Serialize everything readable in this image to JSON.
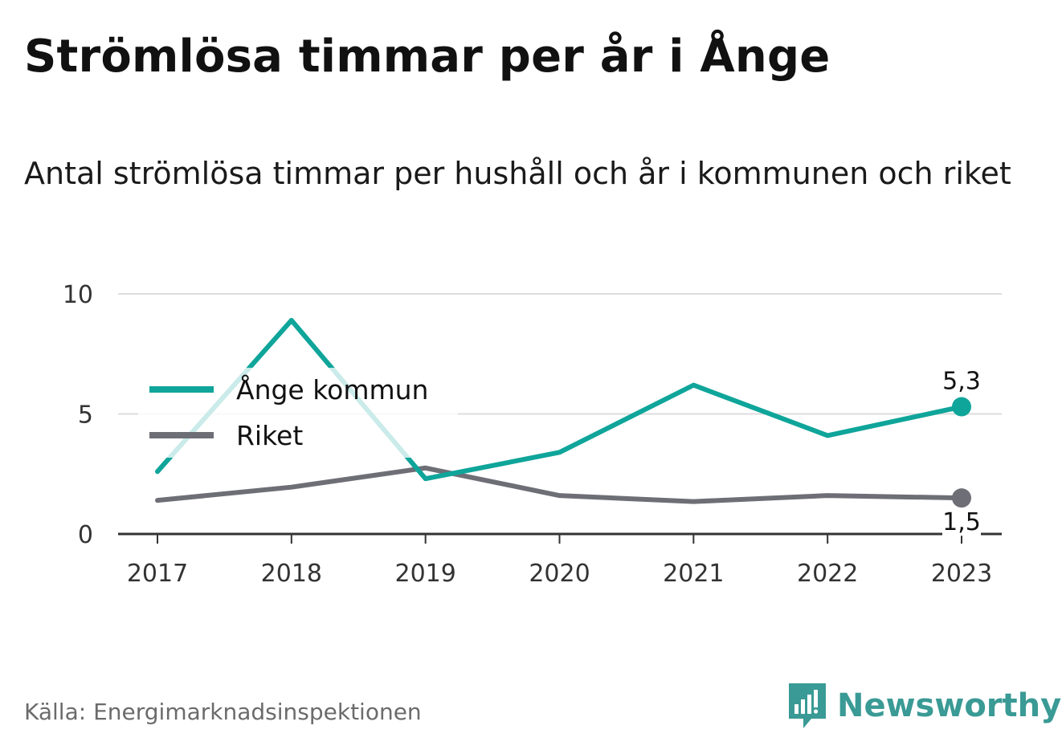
{
  "title": "Strömlösa timmar per år i Ånge",
  "subtitle": "Antal strömlösa timmar per hushåll och år i kommunen och riket",
  "source": "Källa: Energimarknadsinspektionen",
  "brand": {
    "name": "Newsworthy",
    "icon": "bar-chart-speech-bubble-icon",
    "color": "#3a9a95"
  },
  "chart_data": {
    "type": "line",
    "x": [
      "2017",
      "2018",
      "2019",
      "2020",
      "2021",
      "2022",
      "2023"
    ],
    "ylim": [
      0,
      10
    ],
    "yticks": [
      "0",
      "5",
      "10"
    ],
    "grid": true,
    "legend_position": "top-left",
    "series": [
      {
        "name": "Ånge kommun",
        "color": "#0fa59a",
        "values": [
          2.6,
          8.9,
          2.3,
          3.4,
          6.2,
          4.1,
          5.3
        ],
        "end_label": "5,3"
      },
      {
        "name": "Riket",
        "color": "#6e6e76",
        "values": [
          1.4,
          1.95,
          2.75,
          1.6,
          1.35,
          1.6,
          1.5
        ],
        "end_label": "1,5"
      }
    ]
  }
}
